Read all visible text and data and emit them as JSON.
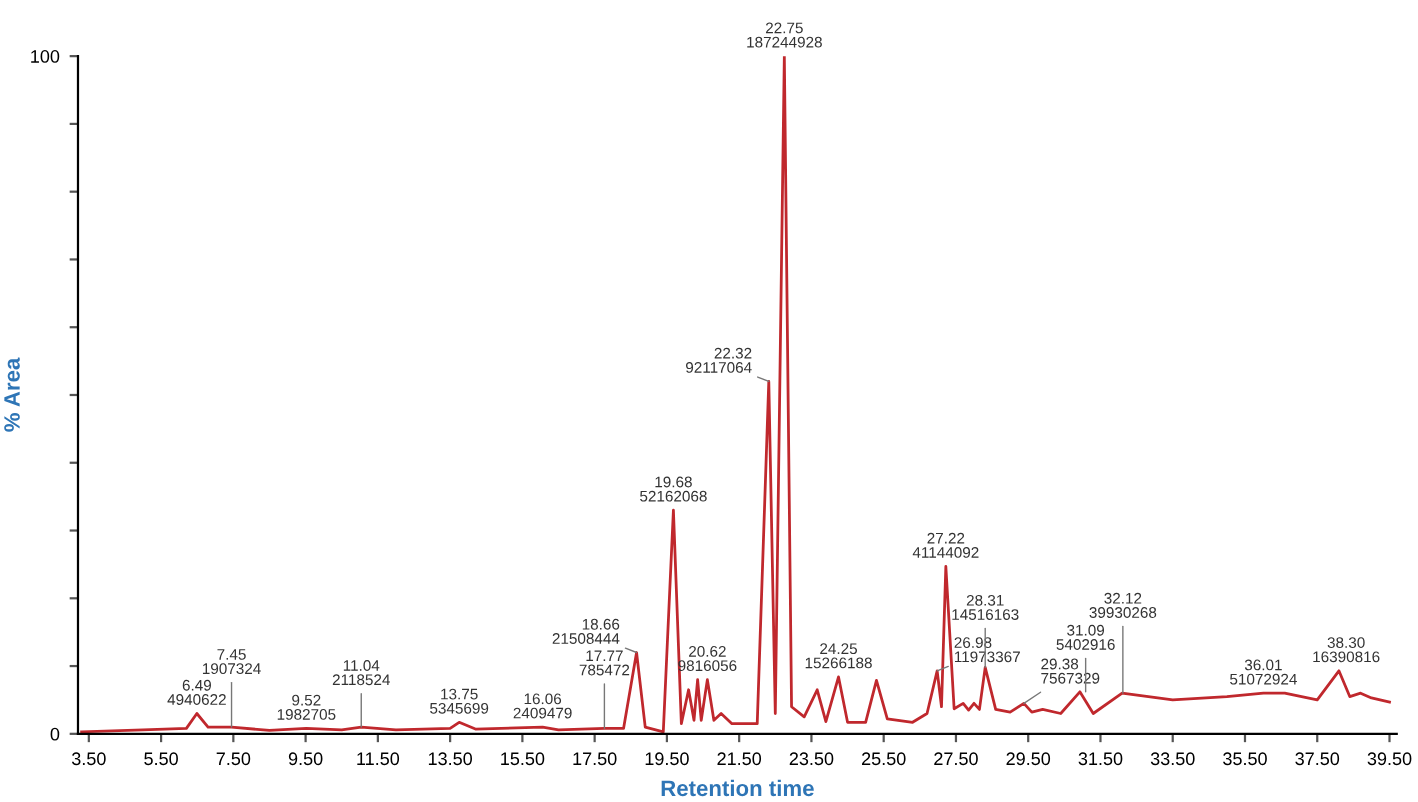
{
  "chart_data": {
    "type": "line",
    "xlabel": "Retention time",
    "ylabel": "% Area",
    "xlim": [
      3.2,
      39.7
    ],
    "ylim": [
      0,
      100
    ],
    "xticks": [
      {
        "value": 3.5,
        "label": "3.50"
      },
      {
        "value": 5.5,
        "label": "5.50"
      },
      {
        "value": 7.5,
        "label": "7.50"
      },
      {
        "value": 9.5,
        "label": "9.50"
      },
      {
        "value": 11.5,
        "label": "11.50"
      },
      {
        "value": 13.5,
        "label": "13.50"
      },
      {
        "value": 15.5,
        "label": "15.50"
      },
      {
        "value": 17.5,
        "label": "17.50"
      },
      {
        "value": 19.5,
        "label": "19.50"
      },
      {
        "value": 21.5,
        "label": "21.50"
      },
      {
        "value": 23.5,
        "label": "23.50"
      },
      {
        "value": 25.5,
        "label": "25.50"
      },
      {
        "value": 27.5,
        "label": "27.50"
      },
      {
        "value": 29.5,
        "label": "29.50"
      },
      {
        "value": 31.5,
        "label": "31.50"
      },
      {
        "value": 33.5,
        "label": "33.50"
      },
      {
        "value": 35.5,
        "label": "35.50"
      },
      {
        "value": 37.5,
        "label": "37.50"
      },
      {
        "value": 39.5,
        "label": "39.50"
      }
    ],
    "yticks": [
      0,
      {
        "value": 10,
        "label": null
      },
      {
        "value": 20,
        "label": null
      },
      {
        "value": 30,
        "label": null
      },
      {
        "value": 40,
        "label": null
      },
      {
        "value": 50,
        "label": null
      },
      {
        "value": 60,
        "label": null
      },
      {
        "value": 70,
        "label": null
      },
      {
        "value": 80,
        "label": null
      },
      {
        "value": 90,
        "label": null
      },
      100
    ],
    "grid": false,
    "legend": false,
    "marker": "none",
    "line_style": "solid",
    "series": [
      {
        "color": "#c0282d",
        "x": [
          3.3,
          5.0,
          6.2,
          6.49,
          6.8,
          7.45,
          8.5,
          9.52,
          10.5,
          11.04,
          12.0,
          13.5,
          13.75,
          14.2,
          16.06,
          16.5,
          17.77,
          18.3,
          18.66,
          18.9,
          19.4,
          19.68,
          19.9,
          20.1,
          20.25,
          20.35,
          20.45,
          20.62,
          20.8,
          21.0,
          21.3,
          22.0,
          22.32,
          22.5,
          22.75,
          22.95,
          23.3,
          23.66,
          23.9,
          24.25,
          24.5,
          25.0,
          25.3,
          25.6,
          26.3,
          26.7,
          26.98,
          27.1,
          27.22,
          27.45,
          27.7,
          27.85,
          28.0,
          28.15,
          28.31,
          28.6,
          29.0,
          29.38,
          29.6,
          29.9,
          30.4,
          30.93,
          31.3,
          32.1,
          33.5,
          35.0,
          36.01,
          36.6,
          37.5,
          38.1,
          38.4,
          38.7,
          39.0,
          39.5
        ],
        "values": [
          0.3,
          0.6,
          0.8,
          3.0,
          1.0,
          1.0,
          0.5,
          0.8,
          0.6,
          1.0,
          0.6,
          0.8,
          1.7,
          0.7,
          1.0,
          0.6,
          0.8,
          0.8,
          12,
          1.0,
          0.3,
          33,
          1.5,
          6.5,
          2,
          8,
          2,
          8,
          2,
          3,
          1.5,
          1.5,
          52,
          3,
          100,
          4,
          2.5,
          6.5,
          1.8,
          8.4,
          1.7,
          1.7,
          7.9,
          2.2,
          1.7,
          3,
          9.3,
          4,
          24.7,
          3.7,
          4.5,
          3.5,
          4.5,
          3.6,
          9.8,
          3.6,
          3.2,
          4.5,
          3.2,
          3.6,
          3,
          6.2,
          3,
          6,
          5,
          5.5,
          6,
          6,
          5,
          9.3,
          5.5,
          6,
          5.3,
          4.7
        ]
      }
    ],
    "annotations": [
      {
        "text": "6.49\n4940622",
        "x": 6.49,
        "y": 3.0
      },
      {
        "text": "7.45\n1907324",
        "x": 7.45,
        "y": 1.0
      },
      {
        "text": "9.52\n1982705",
        "x": 9.52,
        "y": 0.8
      },
      {
        "text": "11.04\n2118524",
        "x": 11.04,
        "y": 1.0
      },
      {
        "text": "13.75\n5345699",
        "x": 13.75,
        "y": 1.7
      },
      {
        "text": "16.06\n2409479",
        "x": 16.06,
        "y": 1.0
      },
      {
        "text": "17.77\n785472",
        "x": 17.77,
        "y": 0.8
      },
      {
        "text": "18.66\n21508444",
        "x": 18.66,
        "y": 12
      },
      {
        "text": "19.68\n52162068",
        "x": 19.68,
        "y": 33
      },
      {
        "text": "20.62\n9816056",
        "x": 20.62,
        "y": 8
      },
      {
        "text": "22.32\n92117064",
        "x": 22.32,
        "y": 52
      },
      {
        "text": "22.75\n187244928",
        "x": 22.75,
        "y": 100
      },
      {
        "text": "24.25\n15266188",
        "x": 24.25,
        "y": 8.4
      },
      {
        "text": "26.98\n11973367",
        "x": 26.98,
        "y": 9.3
      },
      {
        "text": "27.22\n41144092",
        "x": 27.22,
        "y": 24.7
      },
      {
        "text": "28.31\n14516163",
        "x": 28.31,
        "y": 9.8
      },
      {
        "text": "29.38\n7567329",
        "x": 29.38,
        "y": 4.5
      },
      {
        "text": "31.09\n5402916",
        "x": 31.09,
        "y": 6.2
      },
      {
        "text": "32.12\n39930268",
        "x": 32.12,
        "y": 6
      },
      {
        "text": "36.01\n51072924",
        "x": 36.01,
        "y": 6
      },
      {
        "text": "38.30\n16390816",
        "x": 38.3,
        "y": 9.3
      }
    ]
  }
}
